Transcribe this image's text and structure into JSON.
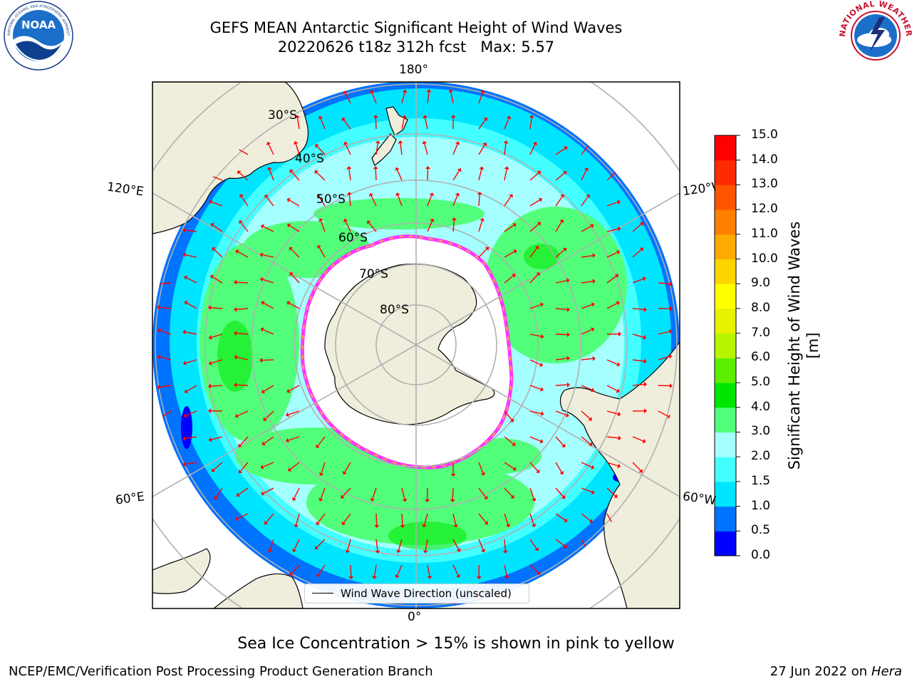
{
  "title": {
    "line1": "GEFS MEAN Antarctic Significant Height of Wind Waves",
    "line2": "20220626 t18z 312h fcst   Max: 5.57"
  },
  "map": {
    "projection": "south-polar-stereographic",
    "longitude_labels": {
      "top": "180°",
      "bottom": "0°",
      "left_upper": "120°E",
      "left_lower": "60°E",
      "right_upper": "120°W",
      "right_lower": "60°W"
    },
    "latitude_labels": [
      "30°S",
      "40°S",
      "50°S",
      "60°S",
      "70°S",
      "80°S"
    ],
    "land_color": "#efeedd",
    "ice_note": "Sea Ice Concentration > 15% is shown in pink to yellow",
    "legend_label": "Wind Wave Direction (unscaled)",
    "arrow_color": "#ff0000"
  },
  "colorbar": {
    "label": "Significant Height of Wind Waves [m]",
    "ticks": [
      "0.0",
      "0.5",
      "1.0",
      "1.5",
      "2.0",
      "3.0",
      "4.0",
      "5.0",
      "6.0",
      "7.0",
      "8.0",
      "9.0",
      "10.0",
      "11.0",
      "12.0",
      "13.0",
      "14.0",
      "15.0"
    ],
    "colors": [
      "#0000ff",
      "#0073ff",
      "#00e5ff",
      "#44ffff",
      "#a6ffff",
      "#52ff7a",
      "#00e600",
      "#5cf000",
      "#b8f500",
      "#e6f200",
      "#ffff00",
      "#ffd500",
      "#ffaa00",
      "#ff8000",
      "#ff5500",
      "#ff2b00",
      "#ff0000"
    ]
  },
  "footer": {
    "left": "NCEP/EMC/Verification Post Processing Product Generation Branch",
    "right_date": "27 Jun 2022 on",
    "right_machine": "Hera"
  },
  "logos": {
    "noaa_text": "NOAA",
    "noaa_ring": "NATIONAL OCEANIC AND ATMOSPHERIC ADMINISTRATION · U.S. DEPARTMENT OF COMMERCE",
    "nws_ring": "NATIONAL WEATHER SERVICE"
  }
}
